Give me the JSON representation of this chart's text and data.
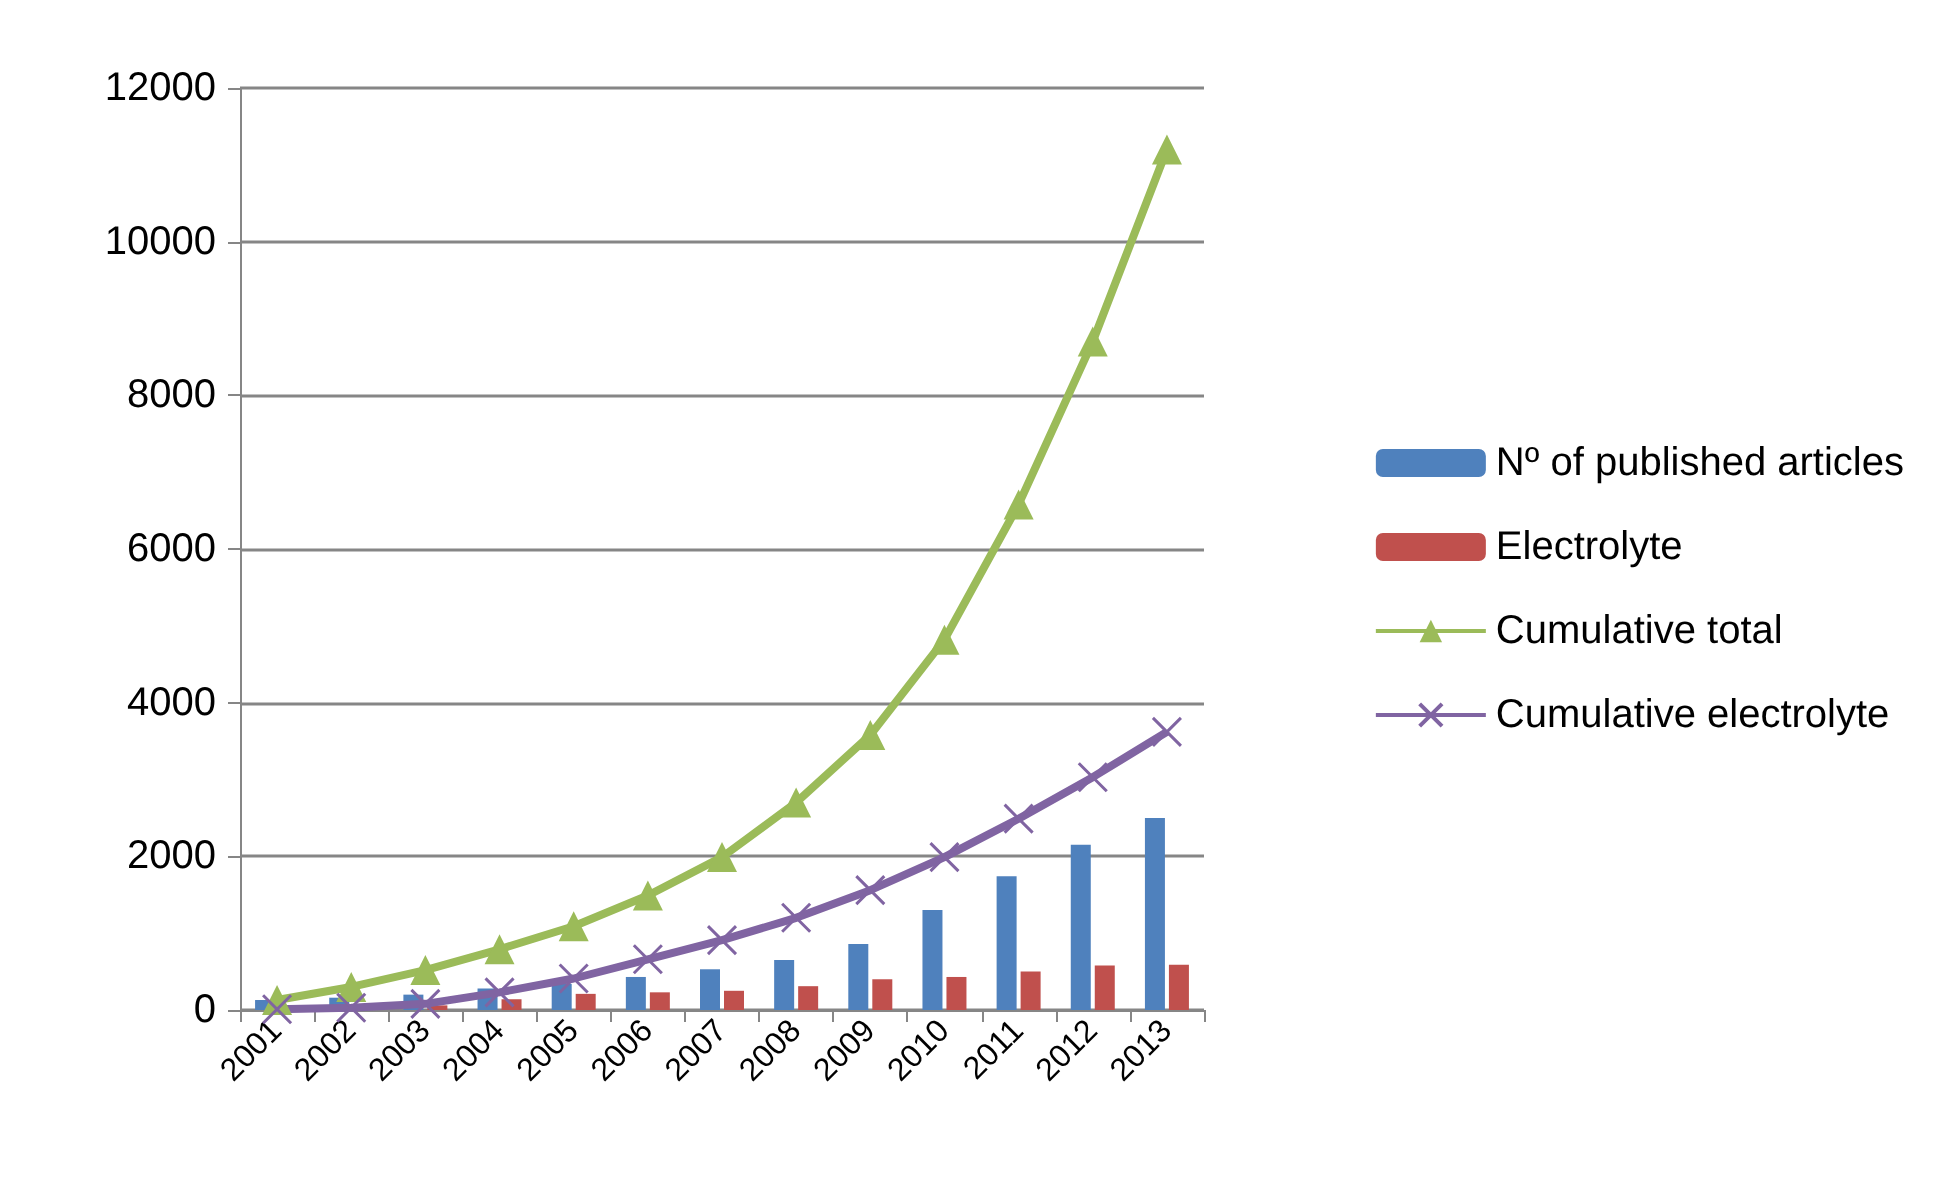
{
  "chart_data": {
    "type": "bar",
    "categories": [
      "2001",
      "2002",
      "2003",
      "2004",
      "2005",
      "2006",
      "2007",
      "2008",
      "2009",
      "2010",
      "2011",
      "2012",
      "2013"
    ],
    "series": [
      {
        "name": "Nº of published articles",
        "color": "#4f81bd",
        "values": [
          130,
          160,
          200,
          280,
          340,
          430,
          530,
          650,
          860,
          1300,
          1740,
          2150,
          2500
        ]
      },
      {
        "name": "Electrolyte",
        "color": "#c0504d",
        "values": [
          20,
          30,
          60,
          140,
          210,
          230,
          250,
          310,
          400,
          430,
          500,
          580,
          590
        ]
      },
      {
        "name": "Cumulative total",
        "type": "line",
        "color": "#9bbb59",
        "marker": "triangle",
        "values": [
          130,
          300,
          520,
          790,
          1090,
          1490,
          1990,
          2700,
          3580,
          4820,
          6580,
          8700,
          11200
        ]
      },
      {
        "name": "Cumulative electrolyte",
        "type": "line",
        "color": "#8064a2",
        "marker": "cross",
        "values": [
          10,
          30,
          80,
          230,
          410,
          660,
          910,
          1200,
          1560,
          1990,
          2490,
          3030,
          3620
        ]
      }
    ],
    "ylim": [
      0,
      12000
    ],
    "yticks": [
      0,
      2000,
      4000,
      6000,
      8000,
      10000,
      12000
    ],
    "grid": "y",
    "legend": "right"
  }
}
